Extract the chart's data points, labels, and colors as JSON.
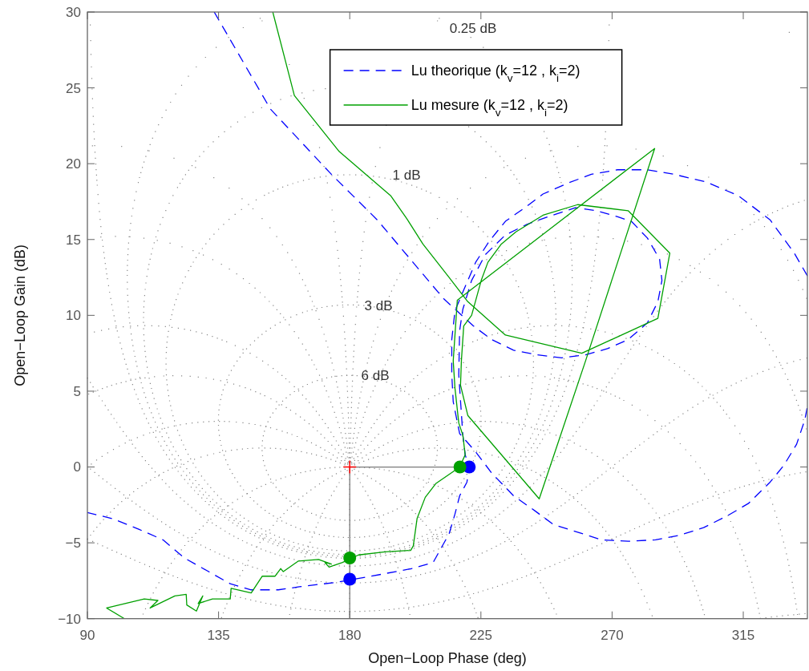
{
  "chart_data": {
    "type": "line",
    "xlabel": "Open−Loop Phase (deg)",
    "ylabel": "Open−Loop Gain (dB)",
    "xlim": [
      90,
      337
    ],
    "ylim": [
      -10,
      30
    ],
    "xticks": [
      90,
      135,
      180,
      225,
      270,
      315
    ],
    "yticks": [
      -10,
      -5,
      0,
      5,
      10,
      15,
      20,
      25,
      30
    ],
    "legend": "top",
    "annotations": [
      "0.25 dB",
      "1 dB",
      "3 dB",
      "6 dB"
    ],
    "series": [
      {
        "name": "Lu theorique (k$_{v}$=12 , k$_{i}$=2)",
        "color": "#0000ff",
        "line_style": "dashed",
        "x": [
          133.5,
          152.8,
          173.7,
          189.4,
          212.2,
          222.4,
          228.7,
          236.2,
          244.4,
          252.7,
          260.9,
          268.4,
          275.5,
          282.1,
          285.7,
          287.1,
          286.3,
          282.1,
          276.6,
          271.9,
          264.5,
          257.4,
          248.0,
          240.8,
          233.4,
          226.5,
          221.8,
          218.8,
          217.7,
          217.4,
          218.8,
          219.6,
          221.0,
          220.2,
          217.7,
          216.1,
          214.1,
          208.6,
          201.2,
          187.4,
          175.6,
          162.7,
          155.5,
          146.2,
          139.0,
          131.6,
          123.3,
          115.9,
          107.6,
          98.5,
          90,
          null,
          337,
          332.5,
          324.2,
          313.2,
          302.2,
          291.2,
          282.1,
          271.9,
          262.9,
          254.6,
          246.3,
          240.8,
          233.4,
          227.9,
          223.2,
          219.6,
          216.1,
          215.0,
          215.0,
          215.5,
          217.7,
          223.2,
          228.7,
          236.2,
          243.6,
          249.9,
          258.2,
          266.4,
          275.5,
          284.9,
          293.1,
          301.4,
          309.7,
          316.8,
          324.2,
          328.9,
          333.3,
          336.1,
          337
        ],
        "values": [
          30.0,
          23.6,
          19.3,
          16.3,
          11.1,
          9.3,
          8.4,
          7.7,
          7.4,
          7.2,
          7.4,
          7.8,
          8.4,
          9.5,
          10.9,
          12.3,
          13.7,
          15.1,
          16.2,
          16.5,
          16.9,
          17.1,
          16.5,
          16.0,
          15.3,
          14.0,
          12.3,
          10.4,
          9.0,
          6.1,
          2.1,
          0.8,
          0,
          -1.0,
          -1.9,
          -3.1,
          -4.4,
          -6.3,
          -6.7,
          -7.2,
          -7.6,
          -7.9,
          -8.1,
          -8.1,
          -7.7,
          -6.9,
          -6.0,
          -4.8,
          -4.1,
          -3.4,
          -3.0,
          null,
          12.6,
          14.1,
          16.3,
          17.9,
          18.8,
          19.3,
          19.6,
          19.6,
          19.3,
          18.7,
          18.0,
          17.2,
          16.2,
          14.9,
          13.5,
          11.9,
          10.3,
          8.4,
          6.1,
          4.3,
          2.2,
          1.0,
          -0.4,
          -1.9,
          -2.9,
          -3.8,
          -4.3,
          -4.8,
          -4.9,
          -4.8,
          -4.5,
          -4.0,
          -3.2,
          -2.4,
          -1.0,
          0.1,
          1.5,
          3.1,
          4.0
        ]
      },
      {
        "name": "Lu mesure (k$_{v}$=12 , k$_{i}$=2)",
        "color": "#00a000",
        "line_style": "solid",
        "x": [
          153.6,
          161.0,
          176.4,
          194.0,
          199.5,
          205.1,
          214.1,
          220.5,
          233.4,
          259.6,
          285.7,
          289.8,
          275.5,
          258.2,
          246.3,
          237.0,
          232.0,
          227.4,
          225.1,
          221.8,
          219.1,
          218.3,
          218.0,
          220.5,
          245.0,
          260.9,
          284.6,
          216.9,
          215.5,
          216.1,
          217.4,
          218.8,
          219.6,
          217.7,
          215.5,
          209.5,
          205.9,
          203.1,
          201.8,
          200.9,
          192.1,
          183.0,
          177.5,
          172.9,
          171.5,
          173.7,
          169.3,
          162.4,
          157.2,
          156.3,
          154.4,
          150.0,
          146.2,
          139.3,
          139.0,
          132.9,
          128.0,
          129.6,
          127.4,
          124.1,
          123.9,
          120.0,
          111.5,
          114.2,
          109.5,
          96.6,
          102.7
        ],
        "values": [
          30.0,
          24.5,
          20.8,
          17.9,
          16.4,
          14.7,
          12.5,
          10.9,
          8.7,
          7.5,
          9.8,
          14.1,
          16.9,
          17.3,
          16.6,
          15.5,
          14.7,
          13.5,
          12.3,
          10.0,
          9.3,
          7.0,
          5.4,
          3.4,
          -2.1,
          7.0,
          21.0,
          11.0,
          7.0,
          5.2,
          2.9,
          2.1,
          0.8,
          0,
          -0.3,
          -1.1,
          -2.0,
          -3.4,
          -5.2,
          -5.5,
          -5.6,
          -5.8,
          -6.3,
          -6.6,
          -6.3,
          -6.4,
          -6.1,
          -6.2,
          -6.9,
          -6.7,
          -7.2,
          -7.2,
          -8.3,
          -8.0,
          -8.7,
          -8.7,
          -9.0,
          -8.5,
          -9.5,
          -9.1,
          -8.4,
          -8.5,
          -9.3,
          -8.8,
          -8.7,
          -9.3,
          -10.0
        ]
      },
      {
        "color": "#7a7a7a",
        "line_style": "solid",
        "x": [
          217.8,
          180,
          180
        ],
        "values": [
          0,
          0,
          -10
        ]
      },
      {
        "type": "scatter",
        "color": "#ff0000",
        "marker": "cross",
        "x": [
          180
        ],
        "values": [
          0
        ]
      },
      {
        "type": "scatter",
        "color": "#0000ff",
        "marker": "circle",
        "x": [
          221.0,
          180
        ],
        "values": [
          0,
          -7.4
        ]
      },
      {
        "type": "scatter",
        "color": "#00a000",
        "marker": "circle",
        "x": [
          217.8,
          180
        ],
        "values": [
          0,
          -6.0
        ]
      }
    ]
  }
}
